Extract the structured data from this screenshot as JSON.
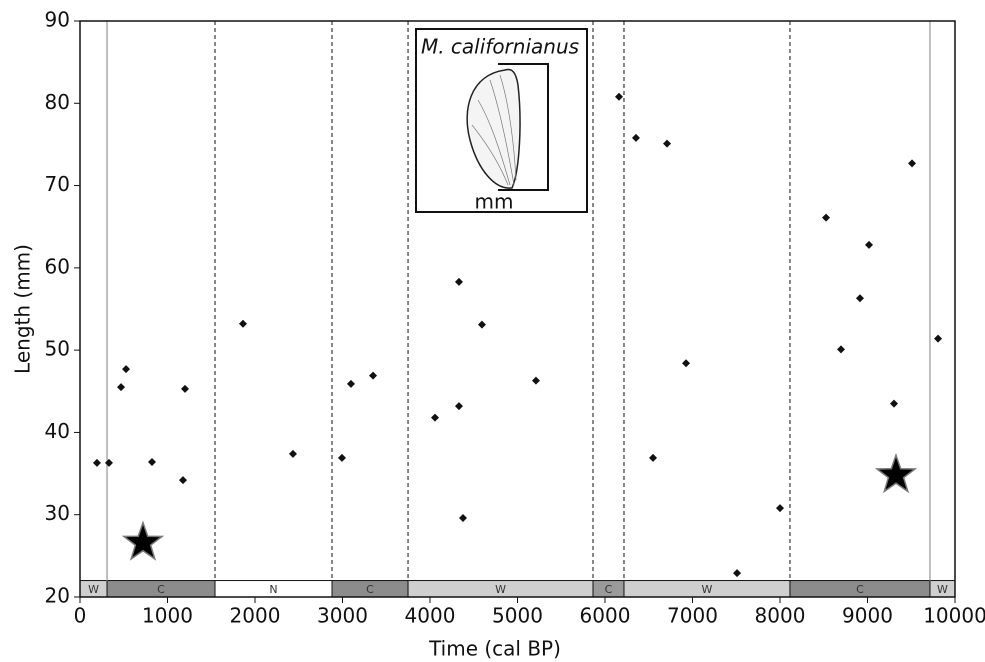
{
  "chart_data": {
    "type": "scatter",
    "xlabel": "Time (cal BP)",
    "ylabel": "Length (mm)",
    "xlim": [
      0,
      10000
    ],
    "ylim": [
      20,
      90
    ],
    "xticks": [
      0,
      1000,
      2000,
      3000,
      4000,
      5000,
      6000,
      7000,
      8000,
      9000,
      10000
    ],
    "yticks": [
      20,
      30,
      40,
      50,
      60,
      70,
      80,
      90
    ],
    "color": "#111111",
    "points": {
      "x": [
        194,
        331,
        526,
        469,
        823,
        1200,
        1177,
        1863,
        2434,
        2994,
        3097,
        3349,
        4057,
        4331,
        4331,
        4377,
        4594,
        5211,
        6160,
        6354,
        6709,
        6549,
        6926,
        7509,
        8000,
        8526,
        8697,
        8914,
        9017,
        9303,
        9509,
        9806
      ],
      "values": [
        36.3,
        36.3,
        47.7,
        45.5,
        36.4,
        45.3,
        34.2,
        53.2,
        37.4,
        36.9,
        45.9,
        46.9,
        41.8,
        58.3,
        43.2,
        29.6,
        53.1,
        46.3,
        80.8,
        75.8,
        75.1,
        36.9,
        48.4,
        22.9,
        30.8,
        66.1,
        50.1,
        56.3,
        62.8,
        43.5,
        72.7,
        51.4
      ]
    },
    "stars": {
      "x": [
        720,
        9326
      ],
      "values": [
        26.6,
        34.8
      ]
    },
    "periods": [
      {
        "label": "W",
        "start": 0,
        "end": 309,
        "fill": "#cfcfcf"
      },
      {
        "label": "C",
        "start": 309,
        "end": 1543,
        "fill": "#8c8c8c"
      },
      {
        "label": "N",
        "start": 1543,
        "end": 2880,
        "fill": "#ffffff"
      },
      {
        "label": "C",
        "start": 2880,
        "end": 3749,
        "fill": "#8c8c8c"
      },
      {
        "label": "W",
        "start": 3749,
        "end": 5863,
        "fill": "#cfcfcf"
      },
      {
        "label": "C",
        "start": 5863,
        "end": 6217,
        "fill": "#9a9a9a"
      },
      {
        "label": "W",
        "start": 6217,
        "end": 8114,
        "fill": "#cfcfcf"
      },
      {
        "label": "C",
        "start": 8114,
        "end": 9714,
        "fill": "#8c8c8c"
      },
      {
        "label": "W",
        "start": 9714,
        "end": 10000,
        "fill": "#cfcfcf"
      }
    ],
    "dividers": [
      {
        "x": 309,
        "style": "solid"
      },
      {
        "x": 1543,
        "style": "dashed"
      },
      {
        "x": 2880,
        "style": "dashed"
      },
      {
        "x": 3749,
        "style": "dashed"
      },
      {
        "x": 5863,
        "style": "dashed"
      },
      {
        "x": 6217,
        "style": "dashed"
      },
      {
        "x": 8114,
        "style": "dashed"
      },
      {
        "x": 9714,
        "style": "solid"
      }
    ],
    "band_top": 22,
    "inset": {
      "title": "M. californianus",
      "unit": "mm"
    }
  }
}
